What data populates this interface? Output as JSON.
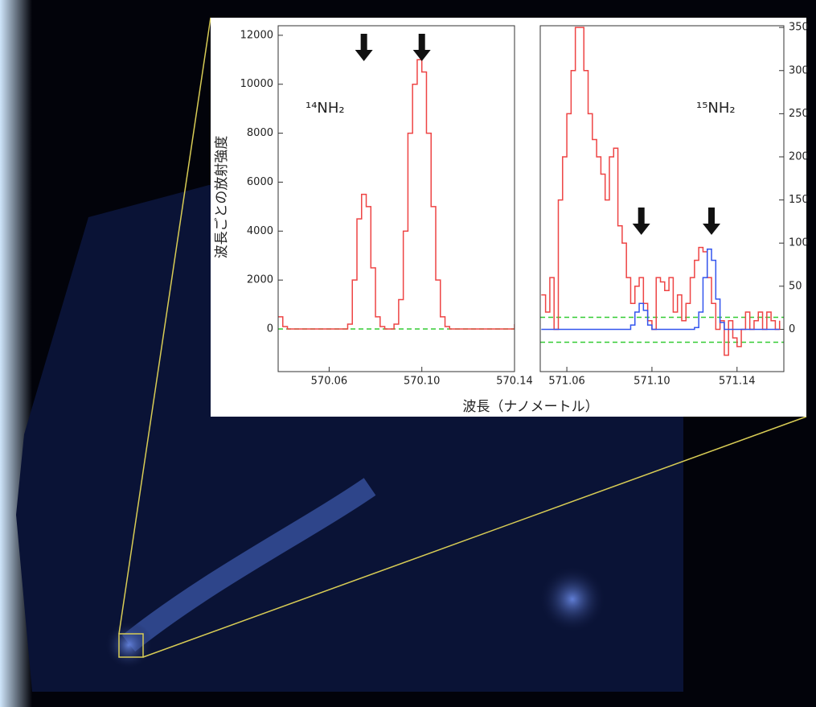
{
  "axis_labels": {
    "x": "波長（ナノメートル）",
    "y": "波長ごとの放射強度"
  },
  "chart_data": [
    {
      "type": "line",
      "step": true,
      "annotation": "¹⁴NH₂",
      "x": [
        570.038,
        570.04,
        570.042,
        570.044,
        570.046,
        570.048,
        570.05,
        570.052,
        570.054,
        570.056,
        570.058,
        570.06,
        570.062,
        570.064,
        570.066,
        570.068,
        570.07,
        570.072,
        570.074,
        570.076,
        570.078,
        570.08,
        570.082,
        570.084,
        570.086,
        570.088,
        570.09,
        570.092,
        570.094,
        570.096,
        570.098,
        570.1,
        570.102,
        570.104,
        570.106,
        570.108,
        570.11,
        570.112,
        570.114,
        570.116,
        570.118,
        570.12,
        570.122,
        570.124,
        570.126,
        570.128,
        570.13,
        570.132,
        570.134,
        570.136,
        570.138,
        570.14
      ],
      "series": [
        {
          "color": "#ee4444",
          "values": [
            500,
            100,
            0,
            0,
            0,
            0,
            0,
            0,
            0,
            0,
            0,
            0,
            0,
            0,
            0,
            200,
            2000,
            4500,
            5500,
            5000,
            2500,
            500,
            100,
            0,
            0,
            200,
            1200,
            4000,
            8000,
            10000,
            11000,
            10500,
            8000,
            5000,
            2000,
            500,
            100,
            0,
            0,
            0,
            0,
            0,
            0,
            0,
            0,
            0,
            0,
            0,
            0,
            0,
            0,
            200
          ]
        }
      ],
      "hlines": [
        {
          "value": 0,
          "color": "#33cc33"
        }
      ],
      "arrows": [
        570.075,
        570.1
      ],
      "xlim": [
        570.038,
        570.14
      ],
      "xticks": [
        570.06,
        {
          "value": 570.1,
          "label": "570.10"
        },
        570.14
      ],
      "ylim": [
        -1740,
        12390
      ],
      "yticks": [
        0,
        2000,
        4000,
        6000,
        8000,
        10000,
        12000
      ]
    },
    {
      "type": "line",
      "step": true,
      "annotation": "¹⁵NH₂",
      "x": [
        571.048,
        571.05,
        571.052,
        571.054,
        571.056,
        571.058,
        571.06,
        571.062,
        571.064,
        571.066,
        571.068,
        571.07,
        571.072,
        571.074,
        571.076,
        571.078,
        571.08,
        571.082,
        571.084,
        571.086,
        571.088,
        571.09,
        571.092,
        571.094,
        571.096,
        571.098,
        571.1,
        571.102,
        571.104,
        571.106,
        571.108,
        571.11,
        571.112,
        571.114,
        571.116,
        571.118,
        571.12,
        571.122,
        571.124,
        571.126,
        571.128,
        571.13,
        571.132,
        571.134,
        571.136,
        571.138,
        571.14,
        571.142,
        571.144,
        571.146,
        571.148,
        571.15,
        571.152,
        571.154,
        571.156,
        571.158,
        571.16
      ],
      "series": [
        {
          "color": "#ee4444",
          "values": [
            40,
            20,
            60,
            0,
            150,
            200,
            250,
            300,
            350,
            350,
            300,
            250,
            220,
            200,
            180,
            150,
            200,
            210,
            120,
            100,
            60,
            30,
            50,
            60,
            30,
            10,
            0,
            60,
            55,
            45,
            60,
            20,
            40,
            10,
            30,
            60,
            80,
            95,
            90,
            60,
            30,
            0,
            10,
            -30,
            10,
            -10,
            -20,
            0,
            20,
            0,
            10,
            20,
            0,
            20,
            10,
            0,
            10
          ]
        },
        {
          "color": "#3355ee",
          "values": [
            0,
            0,
            0,
            0,
            0,
            0,
            0,
            0,
            0,
            0,
            0,
            0,
            0,
            0,
            0,
            0,
            0,
            0,
            0,
            0,
            0,
            5,
            20,
            30,
            22,
            5,
            0,
            0,
            0,
            0,
            0,
            0,
            0,
            0,
            0,
            0,
            2,
            20,
            60,
            93,
            80,
            35,
            8,
            0,
            0,
            0,
            0,
            0,
            0,
            0,
            0,
            0,
            0,
            0,
            0,
            0,
            0
          ]
        }
      ],
      "hlines": [
        {
          "value": 14,
          "color": "#33cc33"
        },
        {
          "value": -15,
          "color": "#33cc33"
        }
      ],
      "arrows": [
        571.095,
        571.128
      ],
      "xlim": [
        571.0475,
        571.162
      ],
      "xticks": [
        {
          "value": 571.06,
          "label": "571.06"
        },
        {
          "value": 571.1,
          "label": "571.10"
        },
        571.14
      ],
      "ylim": [
        -49,
        352
      ],
      "yticks": [
        0,
        50,
        100,
        150,
        200,
        250,
        300,
        350
      ]
    }
  ]
}
